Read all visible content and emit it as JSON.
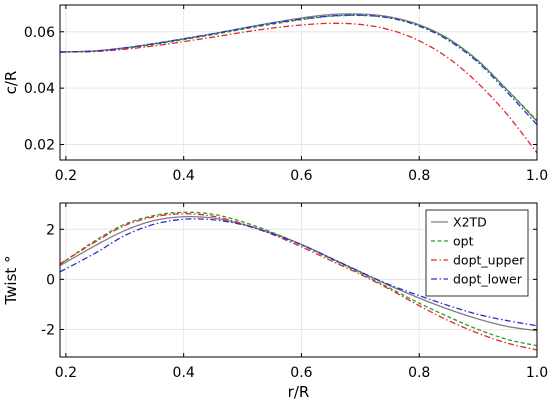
{
  "chart_data": [
    {
      "type": "line",
      "xlabel": "",
      "ylabel": "c/R",
      "xlim": [
        0.19,
        1.0
      ],
      "ylim": [
        0.0145,
        0.0695
      ],
      "xticks": [
        0.2,
        0.4,
        0.6,
        0.8,
        1.0
      ],
      "xtick_labels": [
        "0.2",
        "0.4",
        "0.6",
        "0.8",
        "1.0"
      ],
      "yticks": [
        0.02,
        0.04,
        0.06
      ],
      "ytick_labels": [
        "0.02",
        "0.04",
        "0.06"
      ],
      "grid": true,
      "series": [
        {
          "name": "X2TD",
          "color": "#7f7f7f",
          "dash": "solid",
          "x": [
            0.19,
            0.25,
            0.3,
            0.35,
            0.4,
            0.45,
            0.5,
            0.55,
            0.6,
            0.65,
            0.7,
            0.75,
            0.8,
            0.85,
            0.9,
            0.95,
            1.0
          ],
          "y": [
            0.0528,
            0.0532,
            0.0543,
            0.0558,
            0.0575,
            0.0593,
            0.0613,
            0.0632,
            0.0649,
            0.0661,
            0.0663,
            0.0653,
            0.0625,
            0.0575,
            0.0497,
            0.0392,
            0.0282
          ]
        },
        {
          "name": "opt",
          "color": "#2a9d2a",
          "dash": "dash",
          "x": [
            0.19,
            0.25,
            0.3,
            0.35,
            0.4,
            0.45,
            0.5,
            0.55,
            0.6,
            0.65,
            0.7,
            0.75,
            0.8,
            0.85,
            0.9,
            0.95,
            1.0
          ],
          "y": [
            0.0528,
            0.0531,
            0.0541,
            0.0555,
            0.0572,
            0.059,
            0.0609,
            0.0627,
            0.0643,
            0.0655,
            0.0658,
            0.0649,
            0.0622,
            0.0573,
            0.0497,
            0.0393,
            0.0285
          ]
        },
        {
          "name": "dopt_upper",
          "color": "#e8242d",
          "dash": "dashdot",
          "x": [
            0.19,
            0.25,
            0.3,
            0.35,
            0.4,
            0.45,
            0.5,
            0.55,
            0.6,
            0.65,
            0.7,
            0.75,
            0.8,
            0.85,
            0.9,
            0.95,
            1.0
          ],
          "y": [
            0.0528,
            0.053,
            0.0538,
            0.055,
            0.0565,
            0.0581,
            0.0598,
            0.0613,
            0.0624,
            0.063,
            0.0626,
            0.0607,
            0.0568,
            0.0506,
            0.0417,
            0.0305,
            0.017
          ]
        },
        {
          "name": "dopt_lower",
          "color": "#2b2bd9",
          "dash": "dashdot",
          "x": [
            0.19,
            0.25,
            0.3,
            0.35,
            0.4,
            0.45,
            0.5,
            0.55,
            0.6,
            0.65,
            0.7,
            0.75,
            0.8,
            0.85,
            0.9,
            0.95,
            1.0
          ],
          "y": [
            0.0528,
            0.0532,
            0.0543,
            0.0558,
            0.0575,
            0.0593,
            0.0612,
            0.063,
            0.0645,
            0.0656,
            0.0659,
            0.0649,
            0.062,
            0.0569,
            0.0491,
            0.0384,
            0.027
          ]
        }
      ]
    },
    {
      "type": "line",
      "xlabel": "r/R",
      "ylabel": "Twist °",
      "xlim": [
        0.19,
        1.0
      ],
      "ylim": [
        -3.1,
        3.05
      ],
      "xticks": [
        0.2,
        0.4,
        0.6,
        0.8,
        1.0
      ],
      "xtick_labels": [
        "0.2",
        "0.4",
        "0.6",
        "0.8",
        "1.0"
      ],
      "yticks": [
        -2,
        0,
        2
      ],
      "ytick_labels": [
        "-2",
        "0",
        "2"
      ],
      "grid": true,
      "legend": "top-right",
      "series": [
        {
          "name": "X2TD",
          "color": "#7f7f7f",
          "dash": "solid",
          "x": [
            0.19,
            0.25,
            0.3,
            0.35,
            0.4,
            0.45,
            0.5,
            0.55,
            0.6,
            0.65,
            0.7,
            0.75,
            0.8,
            0.85,
            0.9,
            0.95,
            1.0
          ],
          "y": [
            0.55,
            1.35,
            1.95,
            2.35,
            2.5,
            2.45,
            2.2,
            1.85,
            1.4,
            0.85,
            0.3,
            -0.25,
            -0.75,
            -1.2,
            -1.58,
            -1.88,
            -2.05
          ]
        },
        {
          "name": "opt",
          "color": "#2a9d2a",
          "dash": "dash",
          "x": [
            0.19,
            0.25,
            0.3,
            0.35,
            0.4,
            0.45,
            0.5,
            0.55,
            0.6,
            0.65,
            0.7,
            0.75,
            0.8,
            0.85,
            0.9,
            0.95,
            1.0
          ],
          "y": [
            0.6,
            1.55,
            2.2,
            2.55,
            2.68,
            2.6,
            2.3,
            1.88,
            1.38,
            0.82,
            0.25,
            -0.35,
            -0.95,
            -1.5,
            -2.0,
            -2.4,
            -2.65
          ]
        },
        {
          "name": "dopt_upper",
          "color": "#e8242d",
          "dash": "dashdot",
          "x": [
            0.19,
            0.25,
            0.3,
            0.35,
            0.4,
            0.45,
            0.5,
            0.55,
            0.6,
            0.65,
            0.7,
            0.75,
            0.8,
            0.85,
            0.9,
            0.95,
            1.0
          ],
          "y": [
            0.62,
            1.5,
            2.15,
            2.5,
            2.62,
            2.52,
            2.22,
            1.8,
            1.3,
            0.75,
            0.2,
            -0.4,
            -1.05,
            -1.65,
            -2.15,
            -2.55,
            -2.82
          ]
        },
        {
          "name": "dopt_lower",
          "color": "#2b2bd9",
          "dash": "dashdot",
          "x": [
            0.19,
            0.25,
            0.3,
            0.35,
            0.4,
            0.45,
            0.5,
            0.55,
            0.6,
            0.65,
            0.7,
            0.75,
            0.8,
            0.85,
            0.9,
            0.95,
            1.0
          ],
          "y": [
            0.3,
            1.05,
            1.75,
            2.2,
            2.4,
            2.38,
            2.18,
            1.82,
            1.38,
            0.85,
            0.3,
            -0.22,
            -0.65,
            -1.05,
            -1.4,
            -1.65,
            -1.85
          ]
        }
      ]
    }
  ]
}
